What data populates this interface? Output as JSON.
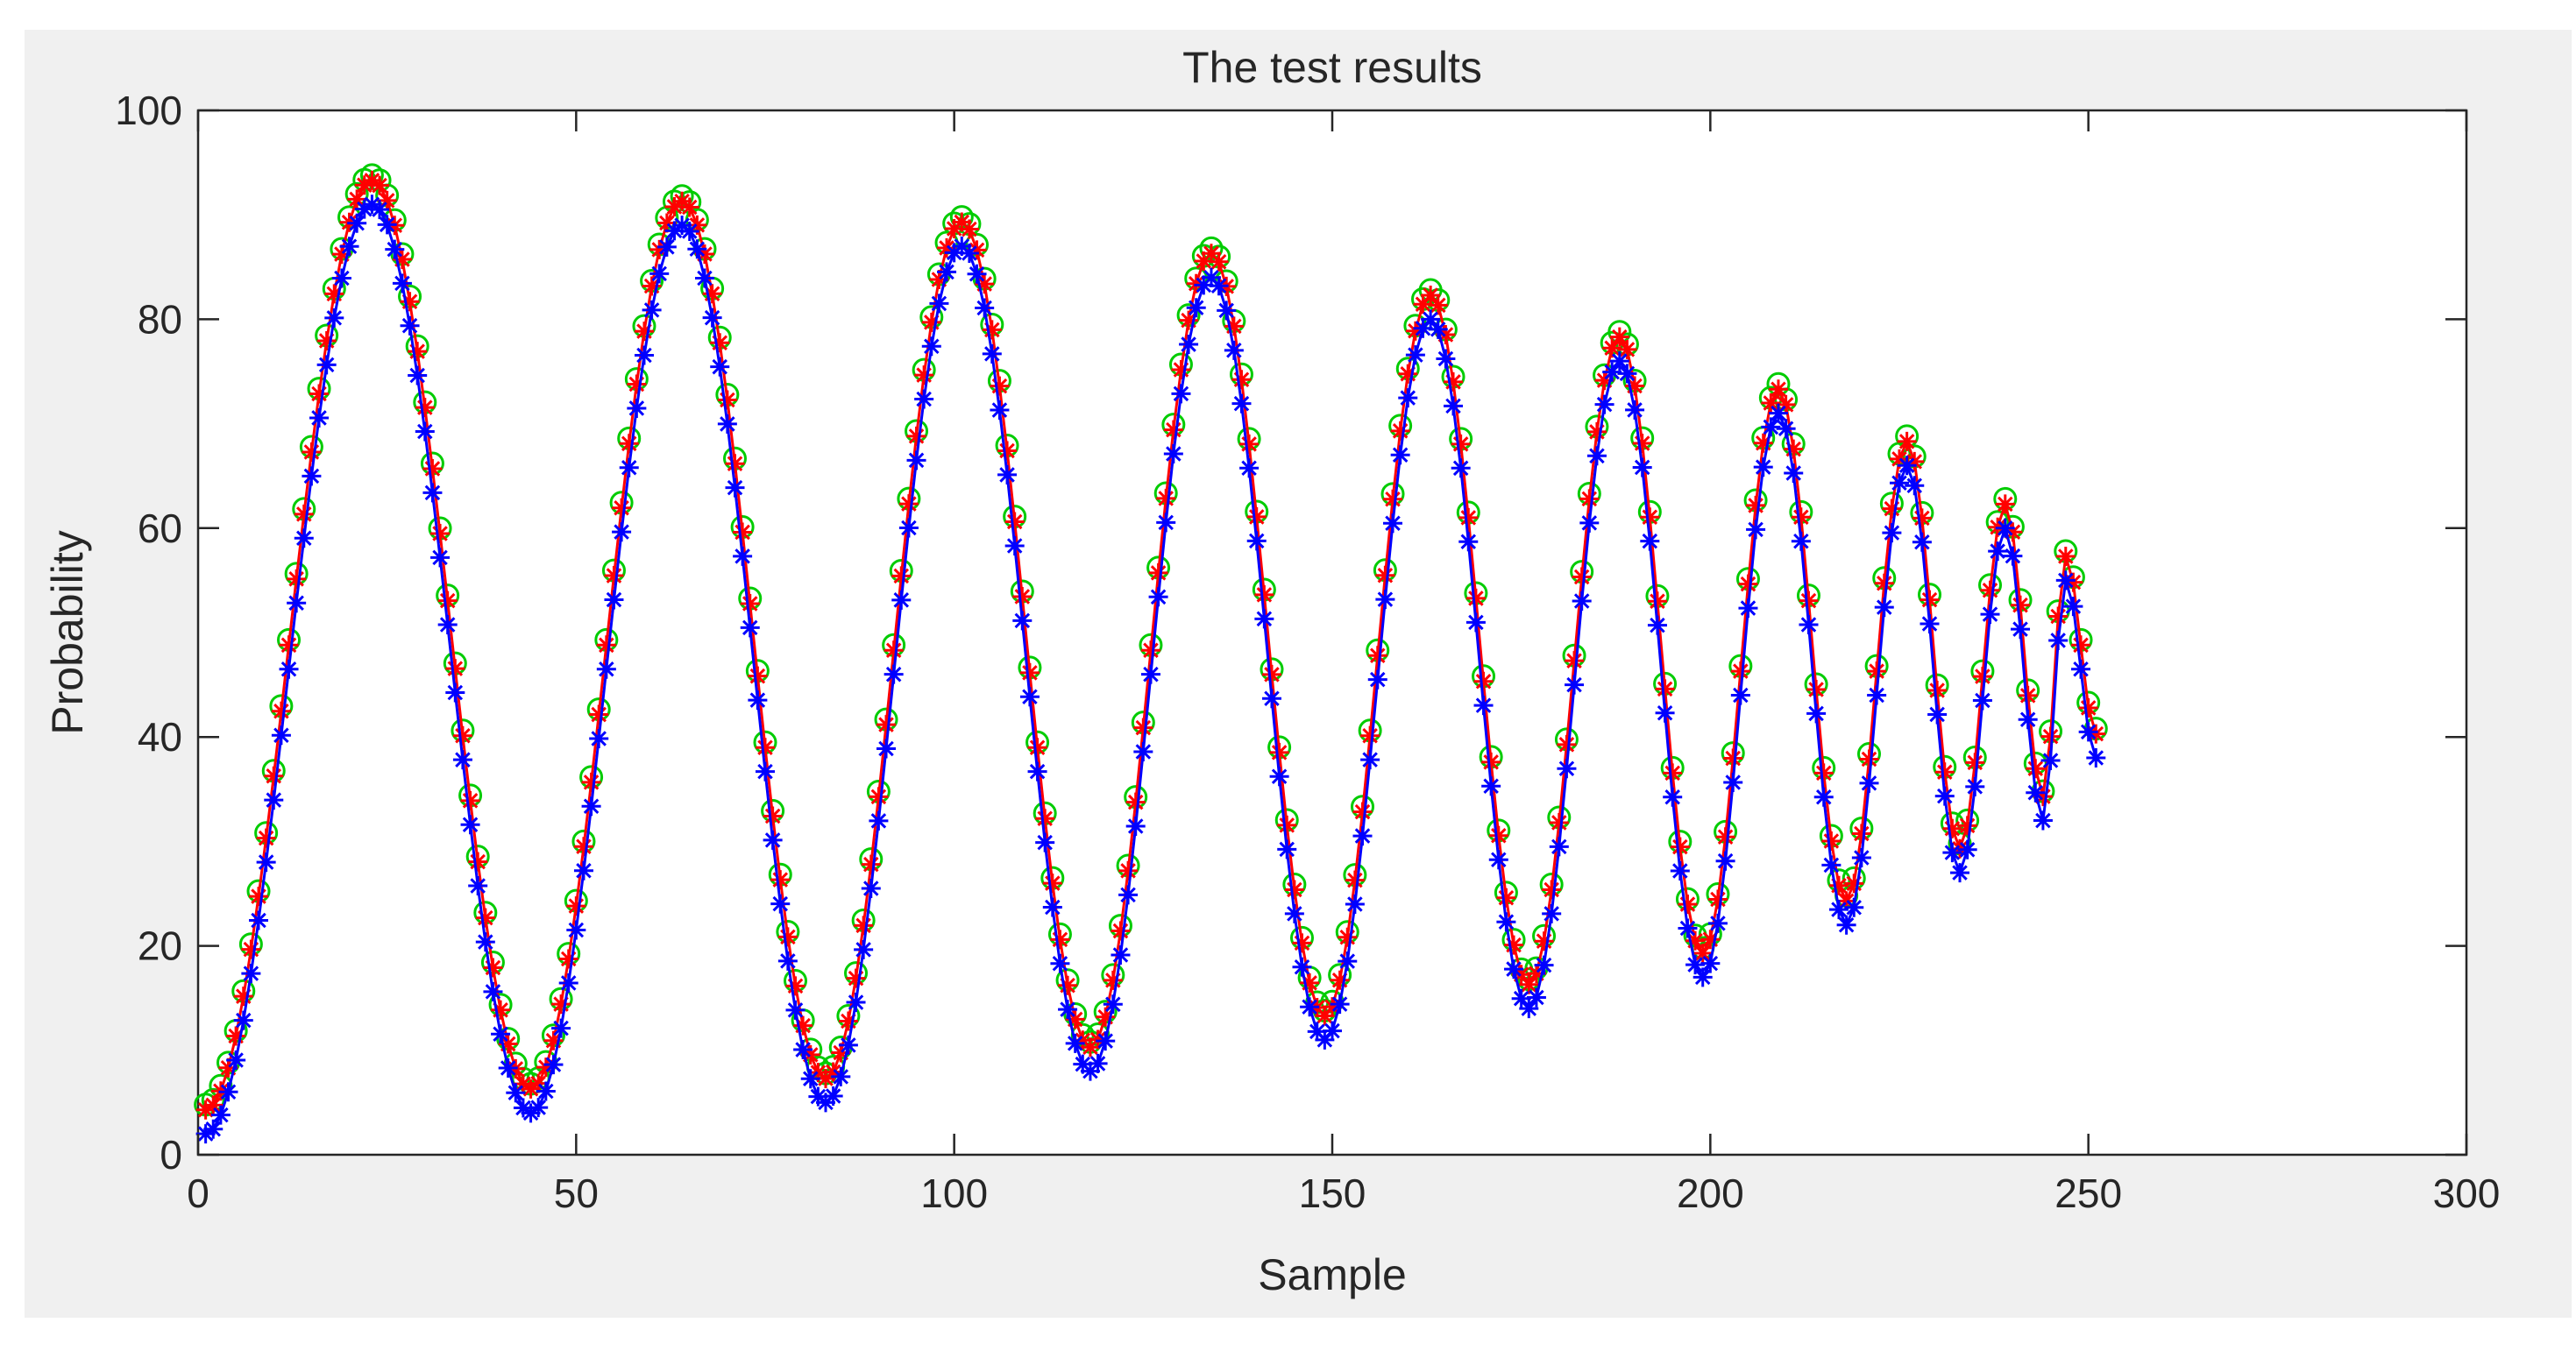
{
  "colors": {
    "figure_background": "#f0f0f0",
    "axes_background": "#ffffff",
    "axes_line": "#262626",
    "text": "#262626",
    "series_circle": "#00cc00",
    "series_red": "#ff0000",
    "series_blue": "#0000ff"
  },
  "chart_data": {
    "type": "line",
    "title": "The test results",
    "xlabel": "Sample",
    "ylabel": "Probability",
    "xlim": [
      0,
      300
    ],
    "ylim": [
      0,
      100
    ],
    "xticks": [
      0,
      50,
      100,
      150,
      200,
      250,
      300
    ],
    "yticks": [
      0,
      20,
      40,
      60,
      80,
      100
    ],
    "xtick_labels": [
      "0",
      "50",
      "100",
      "150",
      "200",
      "250",
      "300"
    ],
    "ytick_labels": [
      "0",
      "20",
      "40",
      "60",
      "80",
      "100"
    ],
    "grid": false,
    "legend": "none",
    "sample_count": 251,
    "peaks": [
      {
        "x": 23,
        "y": 93
      },
      {
        "x": 64,
        "y": 91
      },
      {
        "x": 101,
        "y": 89
      },
      {
        "x": 134,
        "y": 86
      },
      {
        "x": 163,
        "y": 82
      },
      {
        "x": 188,
        "y": 78
      },
      {
        "x": 209,
        "y": 73
      },
      {
        "x": 226,
        "y": 68
      },
      {
        "x": 239,
        "y": 62
      },
      {
        "x": 247,
        "y": 57
      }
    ],
    "troughs": [
      {
        "x": 1,
        "y": 4
      },
      {
        "x": 44,
        "y": 6
      },
      {
        "x": 83,
        "y": 7
      },
      {
        "x": 118,
        "y": 10
      },
      {
        "x": 149,
        "y": 13
      },
      {
        "x": 176,
        "y": 16
      },
      {
        "x": 199,
        "y": 19
      },
      {
        "x": 218,
        "y": 24
      },
      {
        "x": 233,
        "y": 29
      },
      {
        "x": 244,
        "y": 34
      },
      {
        "x": 251,
        "y": 40
      }
    ],
    "series": [
      {
        "name": "circle markers",
        "marker": "o",
        "color": "#00cc00",
        "offset": 0.8
      },
      {
        "name": "red plus-star line",
        "marker": "*",
        "color": "#ff0000",
        "offset": 0.3
      },
      {
        "name": "blue star line",
        "marker": "*",
        "color": "#0000ff",
        "offset": -2.0
      }
    ]
  }
}
